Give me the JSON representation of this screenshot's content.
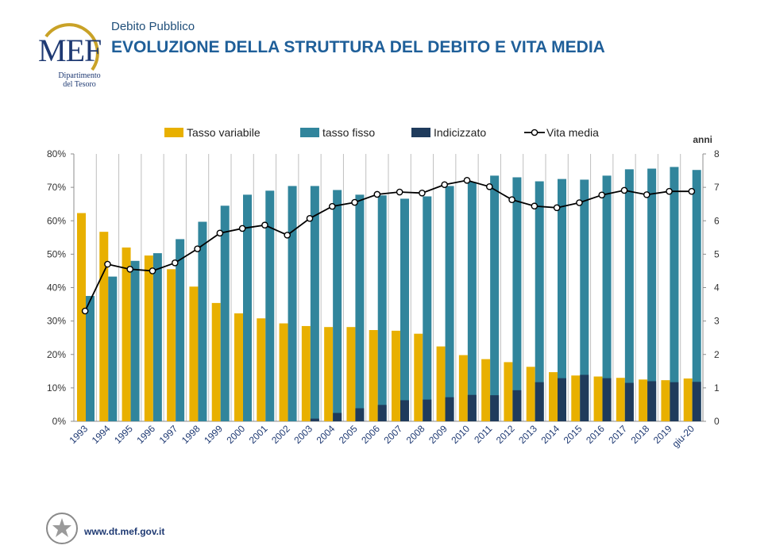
{
  "header": {
    "brand": "MEF",
    "brand_sub_1": "Dipartimento",
    "brand_sub_2": "del Tesoro",
    "subtitle": "Debito Pubblico",
    "title": "EVOLUZIONE DELLA STRUTTURA DEL DEBITO E VITA MEDIA"
  },
  "footer": {
    "url": "www.dt.mef.gov.it"
  },
  "icons": {
    "logo": "mef-logo-icon",
    "emblem": "italian-republic-emblem-icon"
  },
  "colors": {
    "variabile": "#e8b000",
    "fisso": "#31859c",
    "indicizzato": "#1f3b5c",
    "vita_media": "#000000",
    "title": "#1f5f99"
  },
  "chart_data": {
    "type": "bar",
    "categories": [
      "1993",
      "1994",
      "1995",
      "1996",
      "1997",
      "1998",
      "1999",
      "2000",
      "2001",
      "2002",
      "2003",
      "2004",
      "2005",
      "2006",
      "2007",
      "2008",
      "2009",
      "2010",
      "2011",
      "2012",
      "2013",
      "2014",
      "2015",
      "2016",
      "2017",
      "2018",
      "2019",
      "giu-20"
    ],
    "series": [
      {
        "name": "Tasso variabile",
        "values": [
          62.3,
          56.7,
          52.0,
          49.6,
          45.5,
          40.3,
          35.4,
          32.3,
          30.8,
          29.3,
          28.5,
          28.2,
          28.2,
          27.3,
          27.1,
          26.2,
          22.4,
          19.8,
          18.6,
          17.7,
          16.3,
          14.7,
          13.7,
          13.4,
          13.0,
          12.5,
          12.3,
          12.8
        ]
      },
      {
        "name": "tasso fisso",
        "values": [
          37.5,
          43.3,
          48.0,
          50.3,
          54.5,
          59.7,
          64.5,
          67.8,
          69.0,
          70.4,
          70.4,
          69.2,
          67.8,
          67.6,
          66.6,
          67.3,
          70.4,
          71.6,
          73.5,
          73.0,
          71.8,
          72.5,
          72.3,
          73.5,
          75.4,
          75.6,
          76.1,
          75.2
        ]
      },
      {
        "name": "Indicizzato",
        "values": [
          0,
          0,
          0,
          0,
          0,
          0,
          0,
          0,
          0,
          0,
          0.8,
          2.5,
          3.9,
          4.9,
          6.3,
          6.5,
          7.2,
          7.9,
          7.8,
          9.3,
          11.7,
          12.9,
          13.9,
          12.9,
          11.5,
          12.0,
          11.7,
          11.8
        ]
      },
      {
        "name": "Vita media",
        "axis": "right",
        "values": [
          3.3,
          4.7,
          4.55,
          4.5,
          4.74,
          5.16,
          5.63,
          5.77,
          5.87,
          5.57,
          6.07,
          6.43,
          6.55,
          6.79,
          6.86,
          6.83,
          7.08,
          7.21,
          7.02,
          6.63,
          6.44,
          6.39,
          6.54,
          6.77,
          6.91,
          6.78,
          6.88,
          6.88
        ]
      }
    ],
    "left_axis": {
      "ticks": [
        "0%",
        "10%",
        "20%",
        "30%",
        "40%",
        "50%",
        "60%",
        "70%",
        "80%"
      ],
      "range": [
        0,
        80
      ]
    },
    "right_axis": {
      "label": "anni",
      "ticks": [
        "0",
        "1",
        "2",
        "3",
        "4",
        "5",
        "6",
        "7",
        "8"
      ],
      "range": [
        0,
        8
      ]
    },
    "legend_position": "top",
    "grid": "vertical category separators"
  }
}
